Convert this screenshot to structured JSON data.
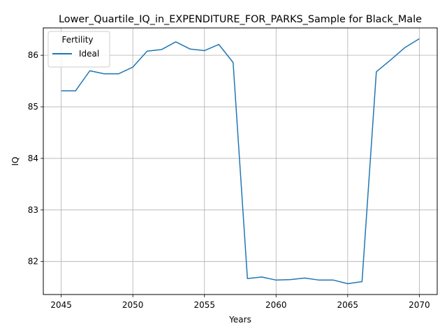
{
  "chart_data": {
    "type": "line",
    "title": "Lower_Quartile_IQ_in_EXPENDITURE_FOR_PARKS_Sample for Black_Male",
    "xlabel": "Years",
    "ylabel": "IQ",
    "xlim": [
      2043.75,
      2071.25
    ],
    "ylim": [
      81.36,
      86.53
    ],
    "x_ticks": [
      2045,
      2050,
      2055,
      2060,
      2065,
      2070
    ],
    "y_ticks": [
      82,
      83,
      84,
      85,
      86
    ],
    "grid": true,
    "legend": {
      "title": "Fertility",
      "placement": "upper left"
    },
    "series": [
      {
        "name": "Ideal",
        "color": "#1f77b4",
        "x": [
          2045,
          2046,
          2047,
          2048,
          2049,
          2050,
          2051,
          2052,
          2053,
          2054,
          2055,
          2056,
          2057,
          2058,
          2059,
          2060,
          2061,
          2062,
          2063,
          2064,
          2065,
          2066,
          2067,
          2068,
          2069,
          2070
        ],
        "y": [
          85.31,
          85.31,
          85.7,
          85.64,
          85.64,
          85.77,
          86.08,
          86.11,
          86.26,
          86.12,
          86.09,
          86.21,
          85.86,
          81.67,
          81.7,
          81.64,
          81.65,
          81.68,
          81.64,
          81.64,
          81.57,
          81.61,
          85.68,
          85.91,
          86.15,
          86.32
        ]
      }
    ]
  }
}
